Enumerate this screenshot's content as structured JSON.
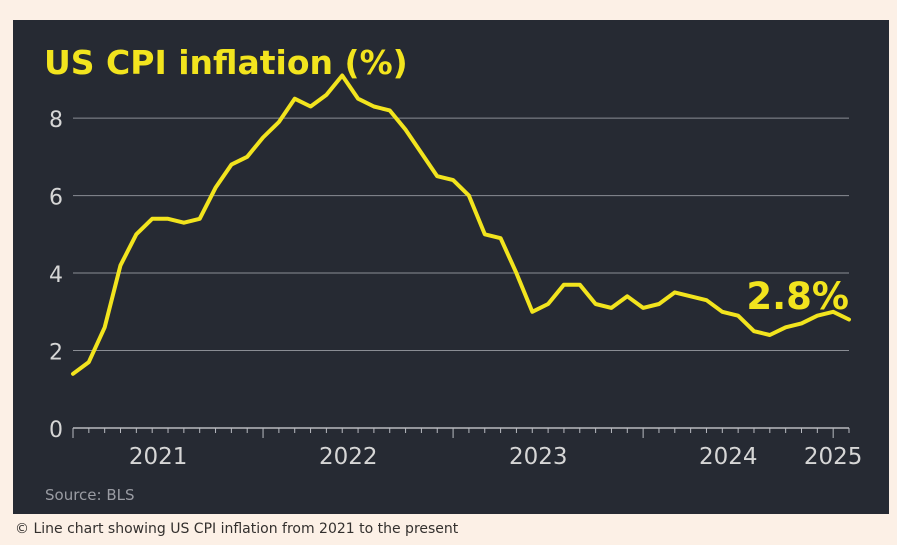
{
  "chart_data": {
    "type": "line",
    "title": "US CPI inflation (%)",
    "xlabel": "",
    "ylabel": "",
    "source": "Source: BLS",
    "x_ticks": [
      "2021",
      "2022",
      "2023",
      "2024",
      "2025"
    ],
    "y_ticks": [
      "0",
      "2",
      "4",
      "6",
      "8"
    ],
    "ylim": [
      0,
      9.5
    ],
    "xlim": [
      "2021-01",
      "2025-02"
    ],
    "grid": true,
    "annotation": "2.8%",
    "colors": {
      "background": "#262a33",
      "line": "#f2e41e",
      "grid": "#8a8d94",
      "text": "#d6d6d6"
    },
    "series": [
      {
        "x": [
          "2021-01",
          "2021-02",
          "2021-03",
          "2021-04",
          "2021-05",
          "2021-06",
          "2021-07",
          "2021-08",
          "2021-09",
          "2021-10",
          "2021-11",
          "2021-12",
          "2022-01",
          "2022-02",
          "2022-03",
          "2022-04",
          "2022-05",
          "2022-06",
          "2022-07",
          "2022-08",
          "2022-09",
          "2022-10",
          "2022-11",
          "2022-12",
          "2023-01",
          "2023-02",
          "2023-03",
          "2023-04",
          "2023-05",
          "2023-06",
          "2023-07",
          "2023-08",
          "2023-09",
          "2023-10",
          "2023-11",
          "2023-12",
          "2024-01",
          "2024-02",
          "2024-03",
          "2024-04",
          "2024-05",
          "2024-06",
          "2024-07",
          "2024-08",
          "2024-09",
          "2024-10",
          "2024-11",
          "2024-12",
          "2025-01",
          "2025-02"
        ],
        "values": [
          1.4,
          1.7,
          2.6,
          4.2,
          5.0,
          5.4,
          5.4,
          5.3,
          5.4,
          6.2,
          6.8,
          7.0,
          7.5,
          7.9,
          8.5,
          8.3,
          8.6,
          9.1,
          8.5,
          8.3,
          8.2,
          7.7,
          7.1,
          6.5,
          6.4,
          6.0,
          5.0,
          4.9,
          4.0,
          3.0,
          3.2,
          3.7,
          3.7,
          3.2,
          3.1,
          3.4,
          3.1,
          3.2,
          3.5,
          3.4,
          3.3,
          3.0,
          2.9,
          2.5,
          2.4,
          2.6,
          2.7,
          2.9,
          3.0,
          2.8
        ]
      }
    ]
  },
  "footer": {
    "caption": "© Line chart showing US CPI inflation from 2021 to the present"
  }
}
